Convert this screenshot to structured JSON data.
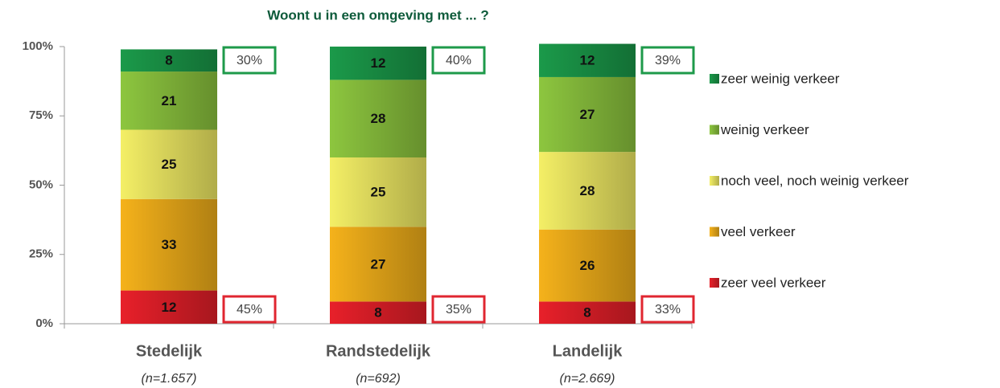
{
  "chart_data": {
    "type": "stacked_bar",
    "title": "Woont u in een omgeving met ... ?",
    "categories": [
      "Stedelijk",
      "Randstedelijk",
      "Landelijk"
    ],
    "category_notes": [
      "(n=1.657)",
      "(n=692)",
      "(n=2.669)"
    ],
    "series": [
      {
        "name": "zeer veel verkeer",
        "color": "#e8202a",
        "values": [
          12,
          8,
          8
        ]
      },
      {
        "name": "veel verkeer",
        "color": "#f5b21b",
        "values": [
          33,
          27,
          26
        ]
      },
      {
        "name": "noch veel, noch weinig verkeer",
        "color": "#f4ef66",
        "values": [
          25,
          25,
          28
        ]
      },
      {
        "name": "weinig verkeer",
        "color": "#8dc63f",
        "values": [
          21,
          28,
          27
        ]
      },
      {
        "name": "zeer weinig verkeer",
        "color": "#1b9a4a",
        "values": [
          8,
          12,
          12
        ]
      }
    ],
    "top_totals": {
      "color": "#1e9a4a",
      "values": [
        30,
        40,
        39
      ],
      "value_labels": [
        "30%",
        "40%",
        "39%"
      ]
    },
    "bottom_totals": {
      "color": "#e02630",
      "values": [
        45,
        35,
        33
      ],
      "value_labels": [
        "45%",
        "35%",
        "33%"
      ]
    },
    "ylim": [
      0,
      100
    ],
    "yticks": [
      {
        "value": 0,
        "label": "0%"
      },
      {
        "value": 25,
        "label": "25%"
      },
      {
        "value": 50,
        "label": "50%"
      },
      {
        "value": 75,
        "label": "75%"
      },
      {
        "value": 100,
        "label": "100%"
      }
    ],
    "legend": "right"
  }
}
